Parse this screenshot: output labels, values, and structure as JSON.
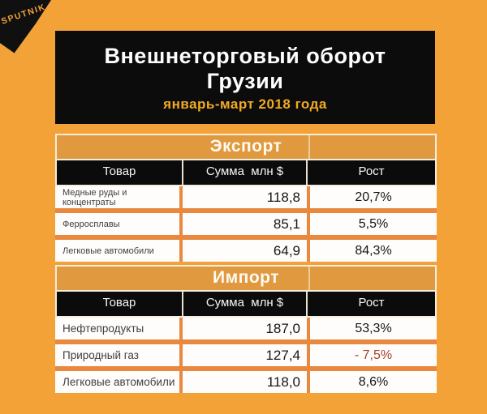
{
  "brand": {
    "logo_text": "SPUTNIK"
  },
  "header": {
    "title_line1": "Внешнеторговый оборот",
    "title_line2": "Грузии",
    "subtitle": "январь-март 2018 года"
  },
  "chart_data": {
    "type": "table",
    "title": "Внешнеторговый оборот Грузии",
    "subtitle": "январь-март 2018 года",
    "columns": [
      "Товар",
      "Сумма  млн $",
      "Рост"
    ],
    "sections": [
      {
        "title": "Экспорт",
        "rows": [
          {
            "product": "Медные руды и концентраты",
            "amount": "118,8",
            "growth": "20,7%",
            "negative": false
          },
          {
            "product": "Ферросплавы",
            "amount": "85,1",
            "growth": "5,5%",
            "negative": false
          },
          {
            "product": "Легковые автомобили",
            "amount": "64,9",
            "growth": "84,3%",
            "negative": false
          }
        ]
      },
      {
        "title": "Импорт",
        "rows": [
          {
            "product": "Нефтепродукты",
            "amount": "187,0",
            "growth": "53,3%",
            "negative": false
          },
          {
            "product": "Природный газ",
            "amount": "127,4",
            "growth": "- 7,5%",
            "negative": true
          },
          {
            "product": "Легковые автомобили",
            "amount": "118,0",
            "growth": "8,6%",
            "negative": false
          }
        ]
      }
    ]
  },
  "colors": {
    "background": "#f3a238",
    "section_bar": "#e1993f",
    "row_gap": "#e8893f",
    "subtitle_accent": "#f2ac21",
    "negative_growth": "#a5412f",
    "header_box": "#0c0c0c",
    "cream_border": "#f4eedd"
  }
}
